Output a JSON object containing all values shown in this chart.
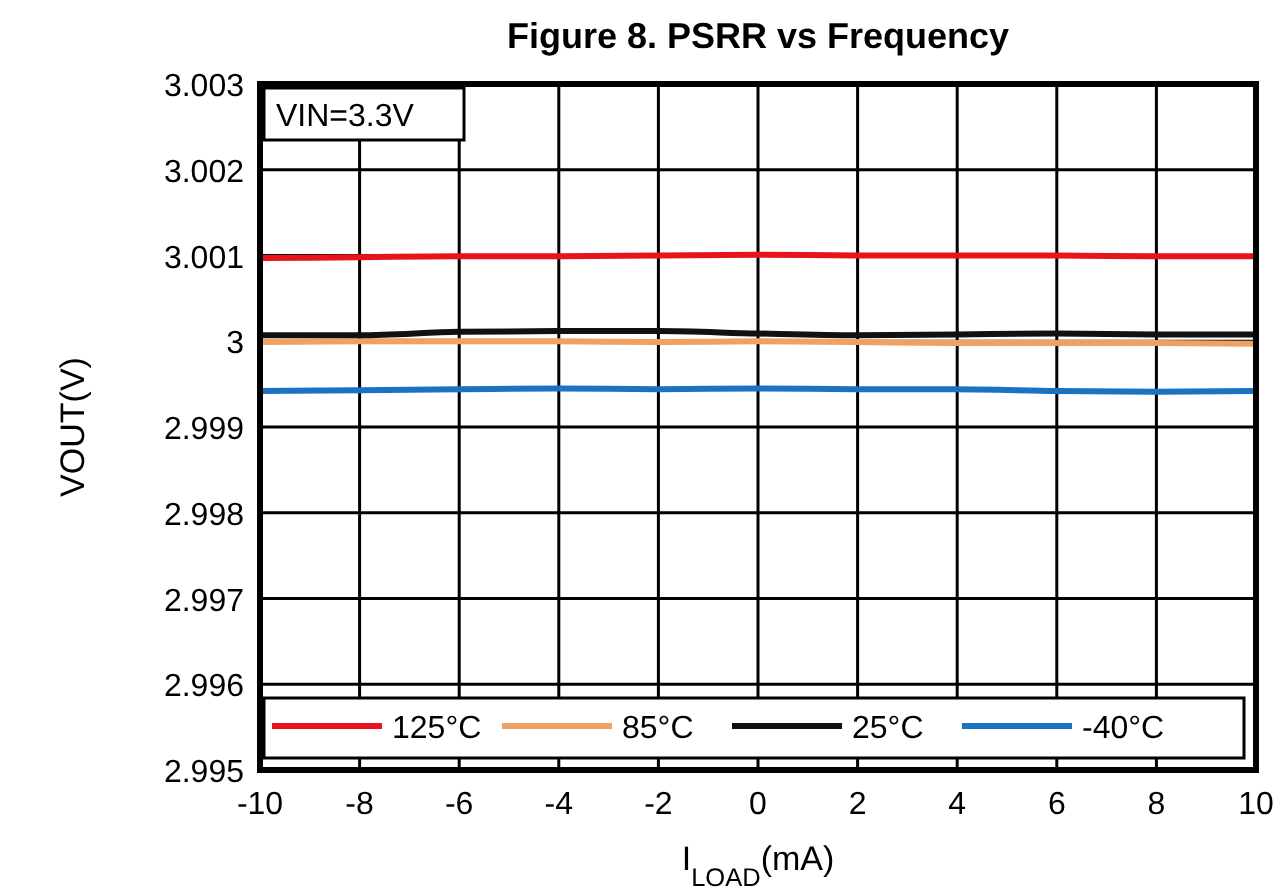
{
  "chart_data": {
    "type": "line",
    "title": "Figure 8. PSRR vs Frequency",
    "xlabel": "I$_{LOAD}$(mA)",
    "ylabel": "VOUT(V)",
    "annotations": [
      "VIN=3.3V"
    ],
    "x": [
      -10,
      -8,
      -6,
      -4,
      -2,
      0,
      2,
      4,
      6,
      8,
      10
    ],
    "series": [
      {
        "name": "125°C",
        "color": "#e8141b",
        "values": [
          3.00097,
          3.00098,
          3.00099,
          3.00099,
          3.001,
          3.00101,
          3.001,
          3.001,
          3.001,
          3.00099,
          3.00099
        ]
      },
      {
        "name": "85°C",
        "color": "#f0a060",
        "values": [
          2.99999,
          3.0,
          3.0,
          3.0,
          2.99999,
          3.0,
          2.99999,
          2.99998,
          2.99998,
          2.99998,
          2.99997
        ]
      },
      {
        "name": "25°C",
        "color": "#111111",
        "values": [
          3.00007,
          3.00007,
          3.00011,
          3.00012,
          3.00012,
          3.00009,
          3.00007,
          3.00008,
          3.00009,
          3.00008,
          3.00008
        ]
      },
      {
        "name": "-40°C",
        "color": "#1a72c0",
        "values": [
          2.99942,
          2.99943,
          2.99944,
          2.99945,
          2.99944,
          2.99945,
          2.99944,
          2.99944,
          2.99942,
          2.99941,
          2.99942
        ]
      }
    ],
    "xlim": [
      -10,
      10
    ],
    "xticks": [
      -10,
      -8,
      -6,
      -4,
      -2,
      0,
      2,
      4,
      6,
      8,
      10
    ],
    "ylim": [
      2.995,
      3.003
    ],
    "yticks": [
      2.995,
      2.996,
      2.997,
      2.998,
      2.999,
      3,
      3.001,
      3.002,
      3.003
    ],
    "grid": true,
    "legend": "bottom",
    "line_style": "solid"
  }
}
